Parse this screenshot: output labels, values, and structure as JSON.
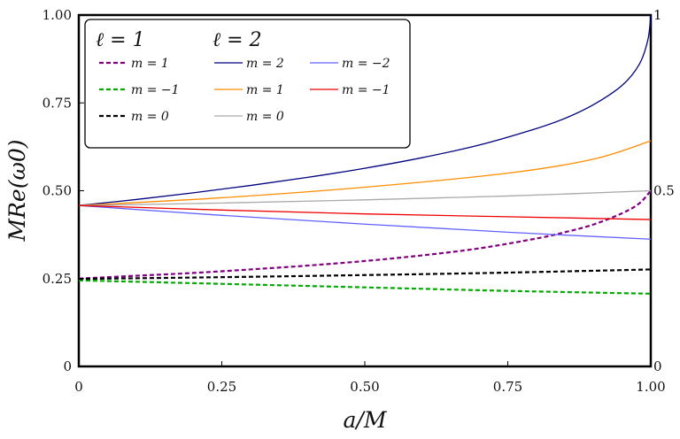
{
  "chart_data": {
    "type": "line",
    "title": "",
    "xlabel": "a/M",
    "ylabel": "MRe(ω0)",
    "xlim": [
      0,
      1
    ],
    "ylim": [
      0,
      1
    ],
    "x_ticks": [
      {
        "value": 0,
        "label": "0"
      },
      {
        "value": 0.25,
        "label": "0.25"
      },
      {
        "value": 0.5,
        "label": "0.50"
      },
      {
        "value": 0.75,
        "label": "0.75"
      },
      {
        "value": 1,
        "label": "1.00"
      }
    ],
    "y_ticks_left": [
      {
        "value": 0,
        "label": "0"
      },
      {
        "value": 0.25,
        "label": "0.25"
      },
      {
        "value": 0.5,
        "label": "0.50"
      },
      {
        "value": 0.75,
        "label": "0.75"
      },
      {
        "value": 1,
        "label": "1.00"
      }
    ],
    "y_ticks_right": [
      {
        "value": 0,
        "label": "0"
      },
      {
        "value": 0.5,
        "label": "0.5"
      },
      {
        "value": 1,
        "label": "1"
      }
    ],
    "legend": {
      "placement": "top-left",
      "groups": [
        {
          "header": "ℓ = 1",
          "entries": [
            "m = 1",
            "m = −1",
            "m = 0"
          ]
        },
        {
          "header": "ℓ = 2",
          "entries": [
            "m = 2",
            "m = 1",
            "m = 0",
            "m = −2",
            "m = −1"
          ]
        }
      ]
    },
    "series": [
      {
        "name": "ℓ=1, m=1",
        "label": "m = 1",
        "color": "#800080",
        "dash": true,
        "x": [
          0,
          0.1,
          0.2,
          0.3,
          0.4,
          0.5,
          0.6,
          0.7,
          0.8,
          0.85,
          0.9,
          0.95,
          0.98,
          1.0
        ],
        "y": [
          0.25,
          0.258,
          0.266,
          0.276,
          0.287,
          0.3,
          0.316,
          0.336,
          0.364,
          0.382,
          0.404,
          0.436,
          0.464,
          0.5
        ]
      },
      {
        "name": "ℓ=1, m=-1",
        "label": "m = −1",
        "color": "#00aa00",
        "dash": true,
        "x": [
          0,
          0.25,
          0.5,
          0.75,
          1.0
        ],
        "y": [
          0.245,
          0.235,
          0.225,
          0.215,
          0.207
        ]
      },
      {
        "name": "ℓ=1, m=0",
        "label": "m = 0",
        "color": "#000000",
        "dash": true,
        "x": [
          0,
          0.25,
          0.5,
          0.75,
          1.0
        ],
        "y": [
          0.249,
          0.254,
          0.26,
          0.267,
          0.276
        ]
      },
      {
        "name": "ℓ=2, m=2",
        "label": "m = 2",
        "color": "#000080",
        "dash": false,
        "x": [
          0,
          0.1,
          0.2,
          0.3,
          0.4,
          0.5,
          0.6,
          0.7,
          0.8,
          0.85,
          0.9,
          0.95,
          0.98,
          0.995,
          1.0
        ],
        "y": [
          0.458,
          0.475,
          0.494,
          0.515,
          0.538,
          0.564,
          0.594,
          0.63,
          0.677,
          0.706,
          0.745,
          0.8,
          0.86,
          0.93,
          1.0
        ]
      },
      {
        "name": "ℓ=2, m=1",
        "label": "m = 1",
        "color": "#ff8c00",
        "dash": false,
        "x": [
          0,
          0.25,
          0.5,
          0.75,
          0.9,
          1.0
        ],
        "y": [
          0.458,
          0.48,
          0.51,
          0.55,
          0.59,
          0.642
        ]
      },
      {
        "name": "ℓ=2, m=0",
        "label": "m = 0",
        "color": "#a9a9a9",
        "dash": false,
        "x": [
          0,
          0.25,
          0.5,
          0.75,
          1.0
        ],
        "y": [
          0.458,
          0.465,
          0.474,
          0.485,
          0.5
        ]
      },
      {
        "name": "ℓ=2, m=-2",
        "label": "m = −2",
        "color": "#6060ff",
        "dash": false,
        "x": [
          0,
          0.25,
          0.5,
          0.75,
          1.0
        ],
        "y": [
          0.458,
          0.43,
          0.405,
          0.382,
          0.362
        ]
      },
      {
        "name": "ℓ=2, m=-1",
        "label": "m = −1",
        "color": "#ee0000",
        "dash": false,
        "x": [
          0,
          0.25,
          0.5,
          0.75,
          1.0
        ],
        "y": [
          0.458,
          0.445,
          0.434,
          0.426,
          0.418
        ]
      }
    ]
  }
}
